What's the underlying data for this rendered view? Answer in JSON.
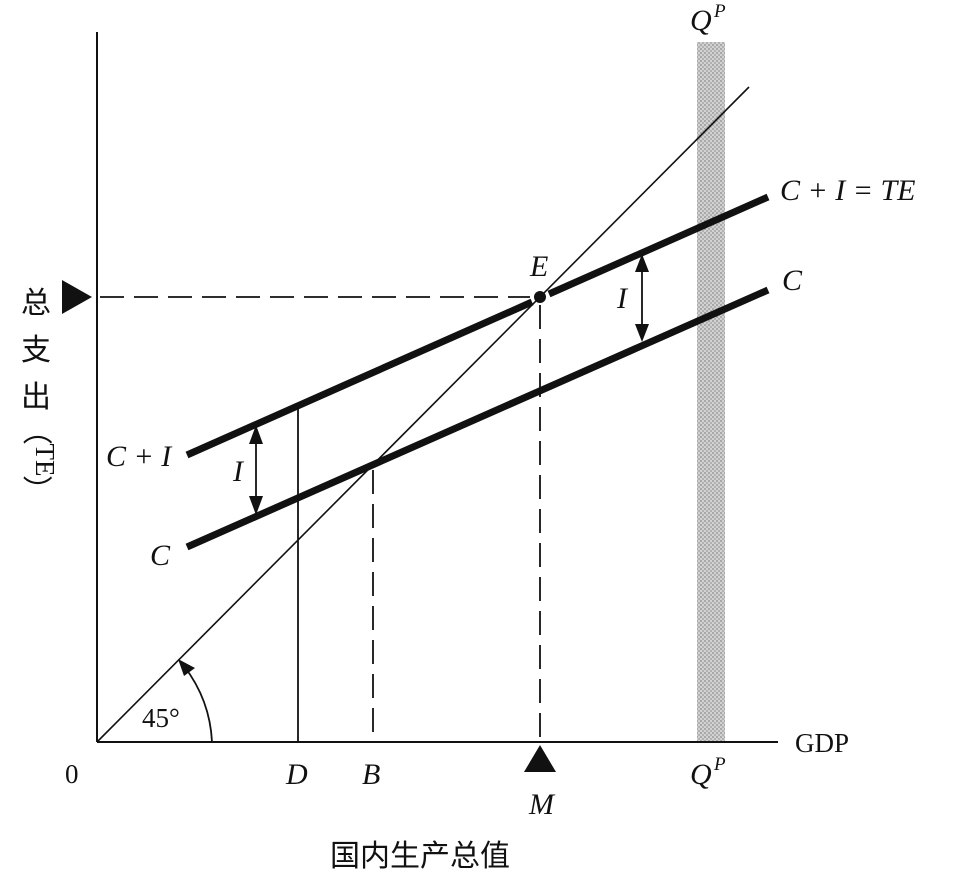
{
  "diagram": {
    "axes": {
      "origin_label": "0",
      "x_axis_label": "GDP",
      "x_axis_title": "国内生产总值",
      "y_axis_title_chars": [
        "总",
        "支",
        "出",
        "（",
        "TE",
        "）"
      ]
    },
    "curves": {
      "total_expenditure_label": "C + I = TE",
      "consumption_label_right": "C",
      "total_expenditure_label_left": "C + I",
      "consumption_label_left": "C"
    },
    "equilibrium_label": "E",
    "investment_label_left": "I",
    "investment_label_right": "I",
    "angle_label": "45°",
    "x_points": {
      "d": "D",
      "b": "B",
      "m": "M"
    },
    "potential_output": {
      "base": "Q",
      "superscript": "P"
    },
    "colors": {
      "ink": "#111111",
      "potential_band": "#c4c4c4"
    }
  }
}
